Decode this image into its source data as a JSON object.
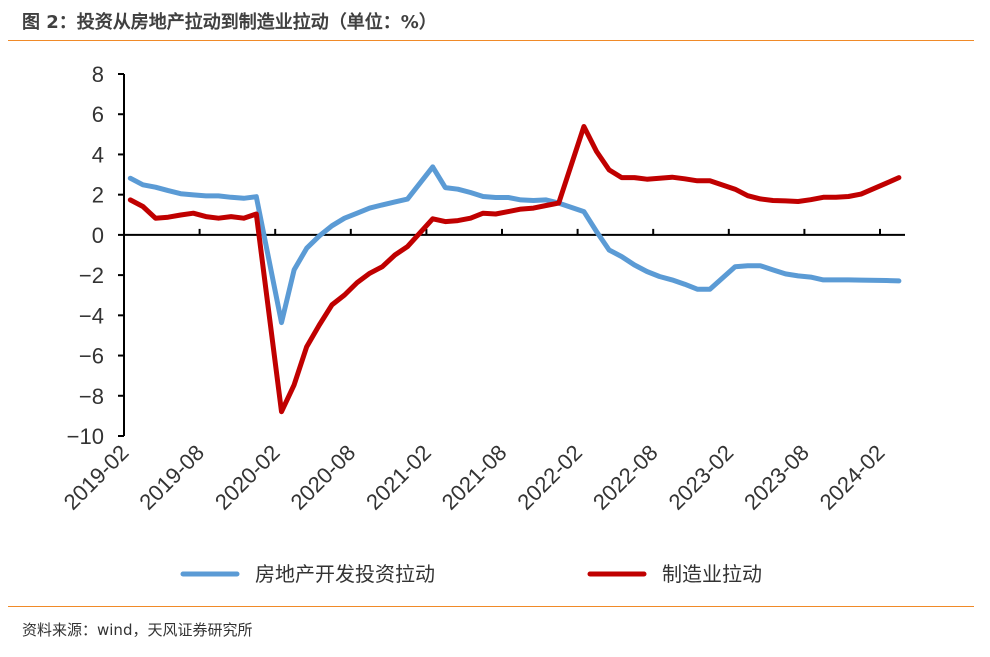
{
  "title": "图 2：投资从房地产拉动到制造业拉动（单位：%）",
  "source": "资料来源：wind，天风证券研究所",
  "colors": {
    "accent_rule": "#F08A28",
    "series_real_estate": "#5B9BD5",
    "series_manufacturing": "#C00000"
  },
  "chart_data": {
    "type": "line",
    "title": "投资从房地产拉动到制造业拉动（单位：%）",
    "xlabel": "",
    "ylabel": "",
    "ylim": [
      -10,
      8
    ],
    "yticks": [
      8,
      6,
      4,
      2,
      0,
      -2,
      -4,
      -6,
      -8,
      -10
    ],
    "ytick_labels": [
      "8",
      "6",
      "4",
      "2",
      "0",
      "−2",
      "−4",
      "−6",
      "−8",
      "−10"
    ],
    "xtick_labels": [
      "2019-02",
      "2019-08",
      "2020-02",
      "2020-08",
      "2021-02",
      "2021-08",
      "2022-02",
      "2022-08",
      "2023-02",
      "2023-08",
      "2024-02"
    ],
    "x_start": "2019-02",
    "x_end": "2024-03",
    "grid": false,
    "legend_position": "bottom",
    "series": [
      {
        "name": "房地产开发投资拉动",
        "color": "#5B9BD5",
        "values": [
          2.82,
          2.49,
          2.37,
          2.2,
          2.05,
          1.99,
          1.94,
          1.94,
          1.87,
          1.82,
          1.9,
          null,
          -4.36,
          -1.74,
          -0.66,
          -0.05,
          0.45,
          0.83,
          1.08,
          1.33,
          1.49,
          1.64,
          1.78,
          null,
          3.38,
          2.35,
          2.27,
          2.11,
          1.91,
          1.86,
          1.86,
          1.74,
          1.71,
          1.74,
          1.58,
          null,
          1.16,
          0.17,
          -0.75,
          -1.08,
          -1.49,
          -1.82,
          -2.07,
          -2.24,
          -2.45,
          -2.7,
          -2.7,
          null,
          -1.58,
          -1.53,
          -1.53,
          -1.74,
          -1.94,
          -2.04,
          -2.1,
          -2.24,
          -2.24,
          -2.24,
          -2.25,
          null,
          -2.27,
          -2.29
        ]
      },
      {
        "name": "制造业拉动",
        "color": "#C00000",
        "values": [
          1.74,
          1.41,
          0.83,
          0.88,
          0.99,
          1.08,
          0.91,
          0.83,
          0.91,
          0.83,
          1.04,
          null,
          -8.79,
          -7.46,
          -5.56,
          -4.48,
          -3.48,
          -2.99,
          -2.37,
          -1.91,
          -1.58,
          -1.0,
          -0.58,
          null,
          0.8,
          0.66,
          0.71,
          0.83,
          1.08,
          1.04,
          1.16,
          1.28,
          1.33,
          1.46,
          1.58,
          null,
          5.39,
          4.15,
          3.23,
          2.85,
          2.85,
          2.77,
          2.82,
          2.87,
          2.79,
          2.69,
          2.69,
          null,
          2.27,
          1.95,
          1.79,
          1.71,
          1.69,
          1.66,
          1.75,
          1.87,
          1.87,
          1.91,
          2.03,
          null,
          2.57,
          2.85
        ]
      }
    ]
  }
}
